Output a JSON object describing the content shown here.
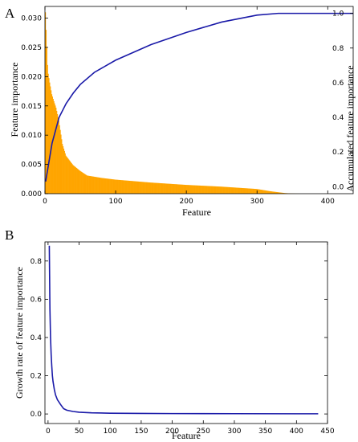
{
  "chart_data": [
    {
      "panel_label": "A",
      "type": "bar+line",
      "xlabel": "Feature",
      "ylabel": "Feature importance",
      "y2label": "Accumulated feature importance",
      "xlim": [
        0,
        436
      ],
      "ylim": [
        0,
        0.032
      ],
      "y2lim": [
        -0.04,
        1.04
      ],
      "xticks": [
        "0",
        "100",
        "200",
        "300",
        "400"
      ],
      "yticks": [
        "0.000",
        "0.005",
        "0.010",
        "0.015",
        "0.020",
        "0.025",
        "0.030"
      ],
      "y2ticks": [
        "0.0",
        "0.2",
        "0.4",
        "0.6",
        "0.8",
        "1.0"
      ],
      "bar_color": "#FFA500",
      "line_color": "#1a1aa8",
      "importance_profile": {
        "x": [
          1,
          2,
          3,
          4,
          5,
          7,
          10,
          13,
          16,
          20,
          25,
          30,
          40,
          50,
          60,
          80,
          100,
          150,
          200,
          250,
          300,
          320,
          340,
          350,
          360,
          436
        ],
        "y": [
          0.031,
          0.028,
          0.025,
          0.022,
          0.0205,
          0.019,
          0.017,
          0.0158,
          0.0147,
          0.0125,
          0.0085,
          0.0065,
          0.0049,
          0.0039,
          0.0031,
          0.0027,
          0.0024,
          0.0019,
          0.0015,
          0.0012,
          0.0008,
          0.0004,
          0.0001,
          3e-05,
          0.0,
          0.0
        ]
      },
      "accumulated": {
        "x": [
          1,
          10,
          20,
          30,
          40,
          50,
          70,
          100,
          150,
          200,
          250,
          300,
          330,
          350,
          436
        ],
        "y": [
          0.03,
          0.25,
          0.4,
          0.48,
          0.54,
          0.59,
          0.66,
          0.73,
          0.82,
          0.89,
          0.95,
          0.99,
          1.0,
          1.0,
          1.0
        ]
      }
    },
    {
      "panel_label": "B",
      "type": "line",
      "xlabel": "Feature",
      "ylabel": "Growth rate of feature importance",
      "xlim": [
        -5,
        450
      ],
      "ylim": [
        -0.05,
        0.9
      ],
      "xticks": [
        "0",
        "50",
        "100",
        "150",
        "200",
        "250",
        "300",
        "350",
        "400",
        "450"
      ],
      "yticks": [
        "0.0",
        "0.2",
        "0.4",
        "0.6",
        "0.8"
      ],
      "line_color": "#1a1aa8",
      "series": [
        {
          "x": [
            2,
            3,
            4,
            5,
            6,
            7,
            8,
            10,
            12,
            15,
            18,
            20,
            25,
            30,
            40,
            50,
            70,
            100,
            150,
            200,
            300,
            400,
            435
          ],
          "y": [
            0.88,
            0.55,
            0.4,
            0.31,
            0.25,
            0.2,
            0.17,
            0.13,
            0.1,
            0.075,
            0.06,
            0.05,
            0.028,
            0.02,
            0.013,
            0.009,
            0.006,
            0.004,
            0.003,
            0.002,
            0.0015,
            0.001,
            0.001
          ]
        }
      ]
    }
  ]
}
